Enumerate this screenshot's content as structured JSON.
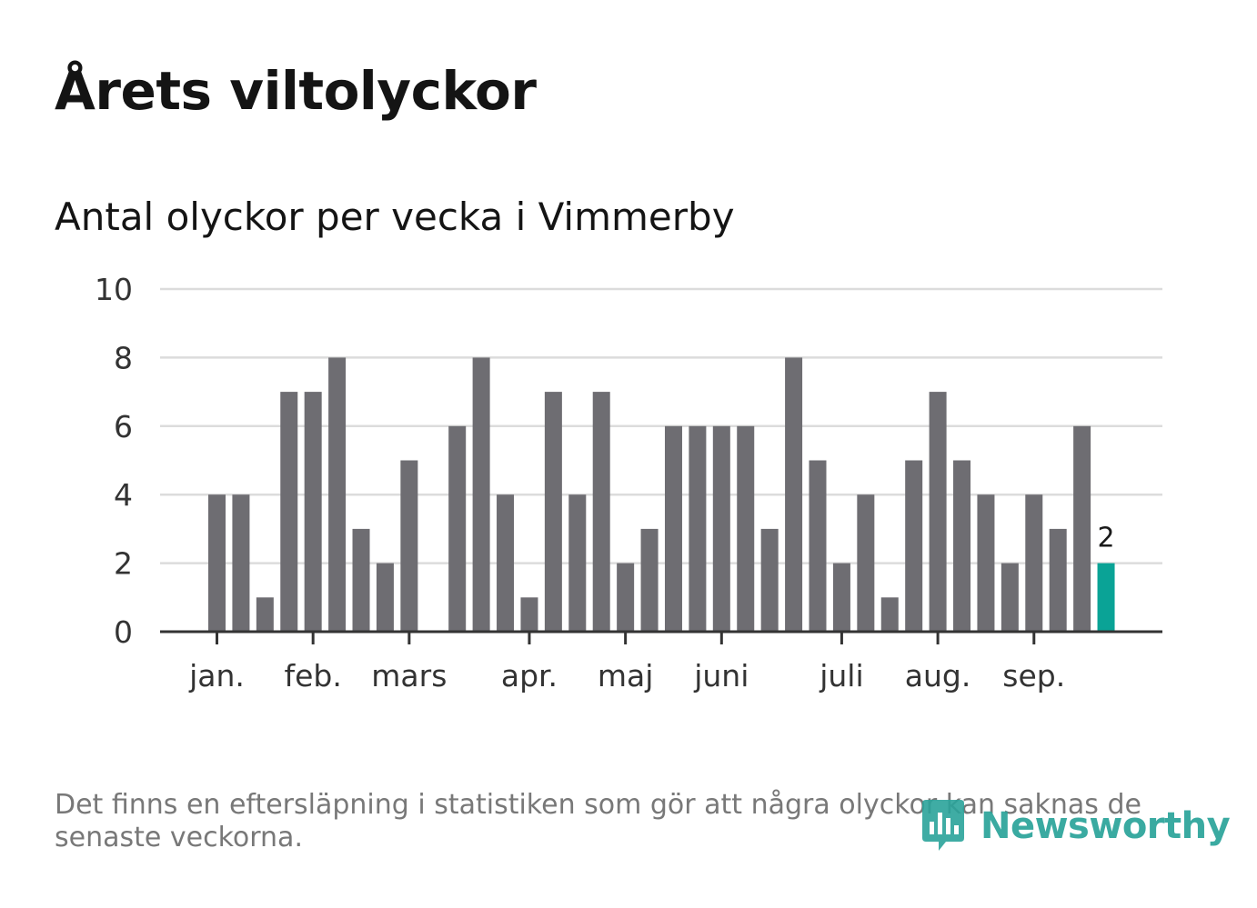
{
  "header": {
    "title": "Årets viltolyckor",
    "subtitle": "Antal olyckor per vecka i Vimmerby"
  },
  "footer": {
    "note": "Det finns en eftersläpning i statistiken som gör att några olyckor kan saknas de senaste veckorna.",
    "brand": "Newsworthy"
  },
  "colors": {
    "bar": "#6e6d72",
    "highlight": "#0aa396",
    "grid": "#dcdcdc",
    "axis": "#333333",
    "brand": "#2aa39a"
  },
  "chart_data": {
    "type": "bar",
    "title": "Årets viltolyckor",
    "subtitle": "Antal olyckor per vecka i Vimmerby",
    "xlabel": "",
    "ylabel": "",
    "ylim": [
      0,
      10
    ],
    "yticks": [
      0,
      2,
      4,
      6,
      8,
      10
    ],
    "grid": true,
    "weeks": [
      1,
      2,
      3,
      4,
      5,
      6,
      7,
      8,
      9,
      10,
      11,
      12,
      13,
      14,
      15,
      16,
      17,
      18,
      19,
      20,
      21,
      22,
      23,
      24,
      25,
      26,
      27,
      28,
      29,
      30,
      31,
      32,
      33,
      34,
      35,
      36,
      37,
      38
    ],
    "values": [
      4,
      4,
      1,
      7,
      7,
      8,
      3,
      2,
      5,
      0,
      6,
      8,
      4,
      1,
      7,
      4,
      7,
      2,
      3,
      6,
      6,
      6,
      6,
      3,
      8,
      5,
      2,
      4,
      1,
      5,
      7,
      5,
      4,
      2,
      4,
      3,
      6,
      2
    ],
    "highlight_index": 37,
    "highlight_label": "2",
    "month_labels": [
      {
        "label": "jan.",
        "week": 1
      },
      {
        "label": "feb.",
        "week": 5
      },
      {
        "label": "mars",
        "week": 9
      },
      {
        "label": "apr.",
        "week": 14
      },
      {
        "label": "maj",
        "week": 18
      },
      {
        "label": "juni",
        "week": 22
      },
      {
        "label": "juli",
        "week": 27
      },
      {
        "label": "aug.",
        "week": 31
      },
      {
        "label": "sep.",
        "week": 35
      }
    ]
  }
}
